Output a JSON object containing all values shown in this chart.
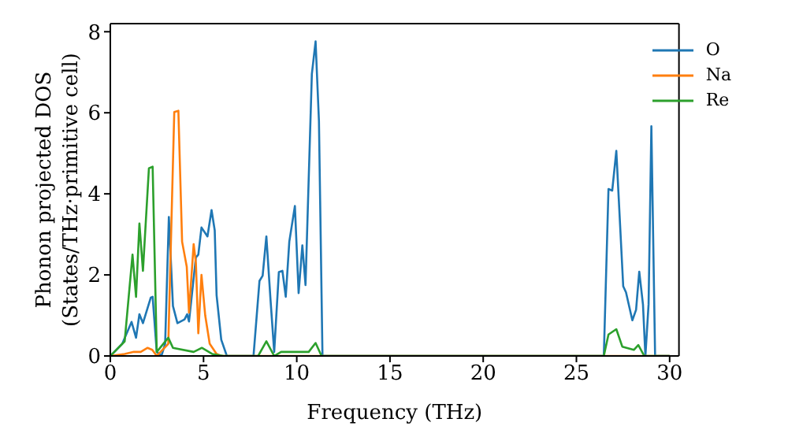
{
  "chart_data": {
    "type": "line",
    "xlabel": "Frequency (THz)",
    "ylabel": "Phonon projected DOS\n(States/THz·primitive cell)",
    "xlim": [
      0,
      30.5
    ],
    "xticks": [
      0,
      5,
      10,
      15,
      20,
      25,
      30
    ],
    "ylim": [
      0,
      8.2
    ],
    "yticks": [
      0,
      2,
      4,
      6,
      8
    ],
    "legend": "top right",
    "marker": "none",
    "line_style": "solid",
    "series": [
      {
        "name": "O",
        "color": "#1f77b4",
        "x": [
          0,
          0.64,
          1.14,
          1.38,
          1.56,
          1.75,
          2.17,
          2.27,
          2.49,
          2.74,
          2.94,
          3.14,
          3.36,
          3.6,
          3.98,
          4.12,
          4.22,
          4.59,
          4.72,
          4.89,
          5.21,
          5.43,
          5.6,
          5.7,
          5.95,
          6.25,
          7.68,
          8.0,
          8.17,
          8.37,
          8.59,
          8.79,
          9.04,
          9.23,
          9.41,
          9.6,
          9.9,
          10.1,
          10.3,
          10.47,
          10.81,
          11.01,
          11.19,
          11.38,
          26.47,
          26.72,
          26.92,
          27.14,
          27.51,
          27.66,
          28.0,
          28.2,
          28.37,
          28.57,
          28.7,
          28.87,
          29.02,
          29.22,
          30
        ],
        "values": [
          0,
          0.3,
          0.84,
          0.45,
          1.03,
          0.81,
          1.44,
          1.46,
          0.1,
          0,
          0.3,
          3.43,
          1.23,
          0.81,
          0.9,
          1.03,
          0.85,
          2.43,
          2.5,
          3.17,
          2.95,
          3.6,
          3.1,
          1.5,
          0.4,
          0,
          0,
          1.85,
          1.98,
          2.95,
          1.4,
          0.1,
          2.07,
          2.1,
          1.46,
          2.82,
          3.7,
          1.55,
          2.73,
          1.75,
          6.96,
          7.76,
          5.8,
          0,
          0,
          4.12,
          4.08,
          5.06,
          1.72,
          1.57,
          0.88,
          1.14,
          2.08,
          1.27,
          0,
          1.27,
          5.67,
          0,
          0
        ]
      },
      {
        "name": "Na",
        "color": "#ff7f0e",
        "x": [
          0,
          0.77,
          1.26,
          1.63,
          2.0,
          2.25,
          2.49,
          3.11,
          3.43,
          3.65,
          3.85,
          4.1,
          4.22,
          4.47,
          4.59,
          4.72,
          4.89,
          5.09,
          5.33,
          5.7,
          5.95,
          30
        ],
        "values": [
          0,
          0.05,
          0.1,
          0.1,
          0.2,
          0.15,
          0,
          0.3,
          6.02,
          6.05,
          2.82,
          2.2,
          1.07,
          2.76,
          2.3,
          0.56,
          2.0,
          1.0,
          0.3,
          0.05,
          0,
          0
        ]
      },
      {
        "name": "Re",
        "color": "#2ca02c",
        "x": [
          0,
          0.77,
          1.19,
          1.38,
          1.56,
          1.75,
          2.07,
          2.27,
          2.49,
          3.11,
          3.36,
          4.47,
          4.91,
          5.46,
          6.07,
          7.93,
          8.37,
          8.79,
          9.16,
          10.64,
          11.01,
          11.33,
          26.47,
          26.72,
          27.14,
          27.46,
          28.08,
          28.32,
          28.64,
          30
        ],
        "values": [
          0,
          0.36,
          2.5,
          1.46,
          3.27,
          2.1,
          4.63,
          4.67,
          0.1,
          0.45,
          0.2,
          0.1,
          0.2,
          0.05,
          0,
          0,
          0.36,
          0,
          0.1,
          0.1,
          0.32,
          0,
          0,
          0.53,
          0.66,
          0.23,
          0.15,
          0.27,
          0,
          0
        ]
      }
    ]
  }
}
